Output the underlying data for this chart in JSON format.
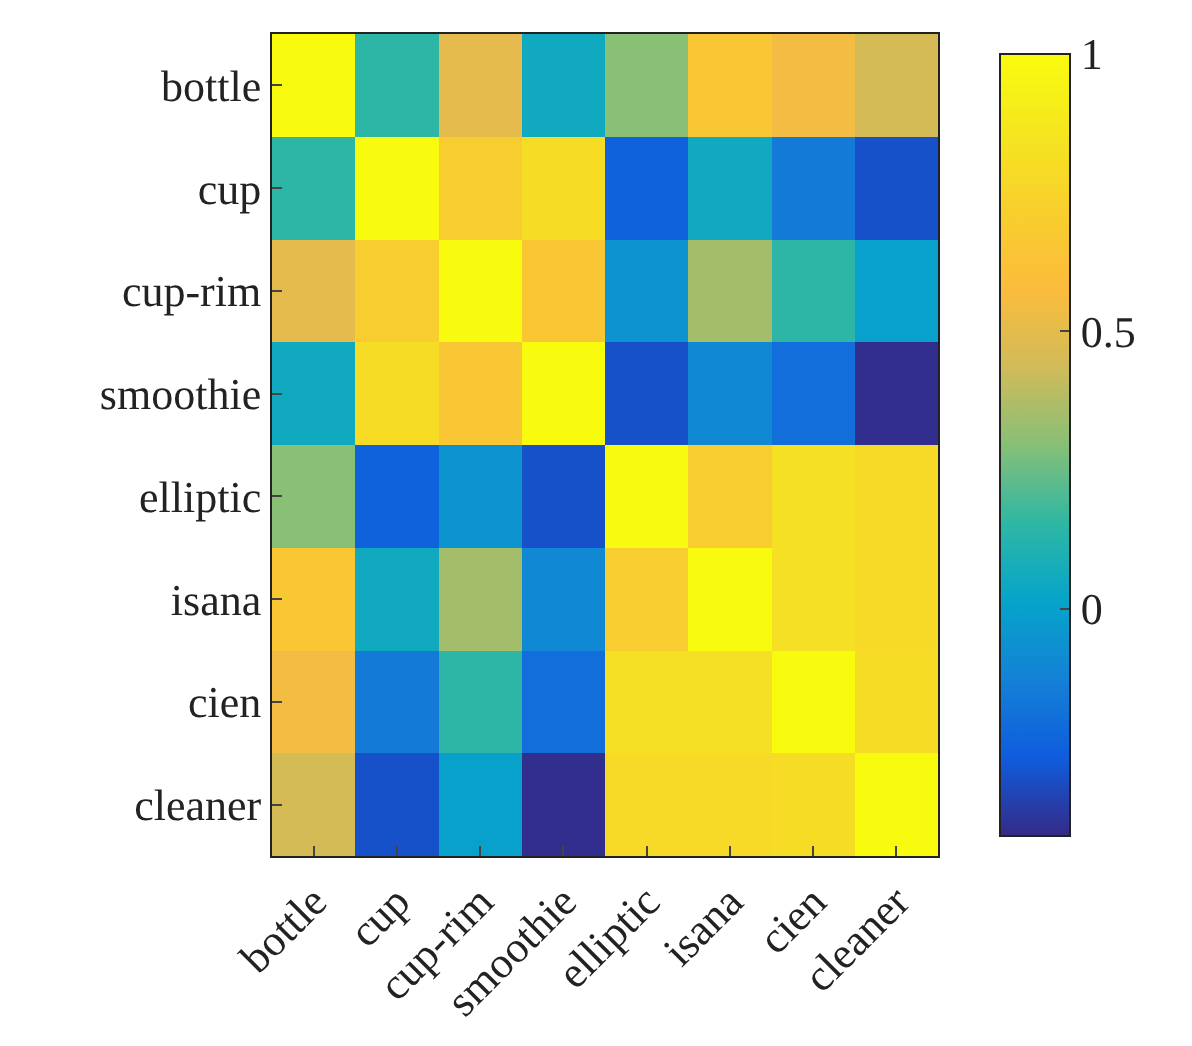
{
  "chart_data": {
    "type": "heatmap",
    "categories": [
      "bottle",
      "cup",
      "cup-rim",
      "smoothie",
      "elliptic",
      "isana",
      "cien",
      "cleaner"
    ],
    "y_categories": [
      "bottle",
      "cup",
      "cup-rim",
      "smoothie",
      "elliptic",
      "isana",
      "cien",
      "cleaner"
    ],
    "cells": [
      [
        1,
        0.15,
        0.5,
        0.05,
        0.3,
        0.65,
        0.55,
        0.45
      ],
      [
        0.15,
        1,
        0.7,
        0.8,
        -0.25,
        0.05,
        -0.15,
        -0.3
      ],
      [
        0.5,
        0.7,
        1,
        0.65,
        -0.05,
        0.35,
        0.15,
        0.0
      ],
      [
        0.05,
        0.8,
        0.65,
        1,
        -0.3,
        -0.1,
        -0.2,
        -0.4
      ],
      [
        0.3,
        -0.25,
        -0.05,
        -0.3,
        1,
        0.7,
        0.82,
        0.78
      ],
      [
        0.65,
        0.05,
        0.35,
        -0.1,
        0.7,
        1,
        0.82,
        0.78
      ],
      [
        0.55,
        -0.15,
        0.15,
        -0.2,
        0.82,
        0.82,
        1,
        0.8
      ],
      [
        0.45,
        -0.3,
        0.0,
        -0.4,
        0.78,
        0.78,
        0.8,
        1
      ]
    ],
    "clim": [
      -0.41,
      1
    ],
    "cticks": [
      0,
      0.5,
      1
    ]
  }
}
